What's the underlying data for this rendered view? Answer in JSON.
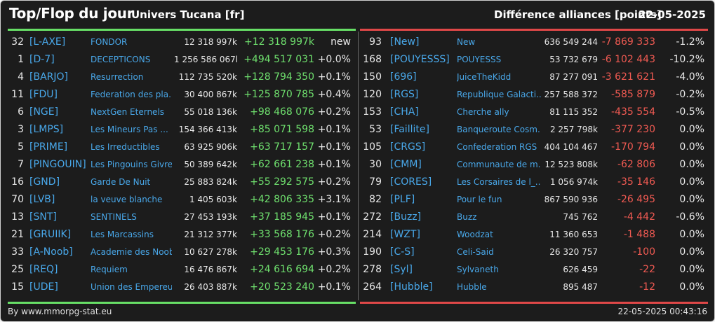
{
  "header": {
    "title": "Top/Flop du jour",
    "subtitle": "Univers Tucana [fr]",
    "metric": "Différence alliances [points]",
    "date": "22-05-2025"
  },
  "colors": {
    "background": "#1c1c1c",
    "top_bar": "#67df66",
    "flop_bar": "#e04848",
    "link": "#49a8ea",
    "positive": "#6fe06e",
    "negative": "#f05a52"
  },
  "top": [
    {
      "rank": "32",
      "tag": "[L-AXE]",
      "name": "FONDOR",
      "points": "12 318 997k",
      "diff": "+12 318 997k",
      "pct": "new"
    },
    {
      "rank": "1",
      "tag": "[D-7]",
      "name": "DECEPTICONS",
      "points": "1 256 586 067k",
      "diff": "+494 517 031",
      "pct": "+0.0%"
    },
    {
      "rank": "4",
      "tag": "[BARJO]",
      "name": "Resurrection",
      "points": "112 735 520k",
      "diff": "+128 794 350",
      "pct": "+0.1%"
    },
    {
      "rank": "11",
      "tag": "[FDU]",
      "name": "Federation des pla...",
      "points": "30 400 867k",
      "diff": "+125 870 785",
      "pct": "+0.4%"
    },
    {
      "rank": "6",
      "tag": "[NGE]",
      "name": "NextGen Eternels",
      "points": "55 018 136k",
      "diff": "+98 468 076",
      "pct": "+0.2%"
    },
    {
      "rank": "3",
      "tag": "[LMPS]",
      "name": "Les Mineurs Pas ...",
      "points": "154 366 413k",
      "diff": "+85 071 598",
      "pct": "+0.1%"
    },
    {
      "rank": "5",
      "tag": "[PRIME]",
      "name": "Les Irreductibles",
      "points": "63 925 906k",
      "diff": "+63 717 157",
      "pct": "+0.1%"
    },
    {
      "rank": "7",
      "tag": "[PINGOUIN]",
      "name": "Les Pingouins Givre...",
      "points": "50 389 642k",
      "diff": "+62 661 238",
      "pct": "+0.1%"
    },
    {
      "rank": "16",
      "tag": "[GND]",
      "name": "Garde De Nuit",
      "points": "25 883 824k",
      "diff": "+55 292 575",
      "pct": "+0.2%"
    },
    {
      "rank": "70",
      "tag": "[LVB]",
      "name": "la veuve blanche",
      "points": "1 405 603k",
      "diff": "+42 806 335",
      "pct": "+3.1%"
    },
    {
      "rank": "13",
      "tag": "[SNT]",
      "name": "SENTINELS",
      "points": "27 453 193k",
      "diff": "+37 185 945",
      "pct": "+0.1%"
    },
    {
      "rank": "21",
      "tag": "[GRUIIK]",
      "name": "Les Marcassins",
      "points": "21 312 377k",
      "diff": "+33 568 176",
      "pct": "+0.2%"
    },
    {
      "rank": "33",
      "tag": "[A-Noob]",
      "name": "Academie des Noob...",
      "points": "10 627 278k",
      "diff": "+29 453 176",
      "pct": "+0.3%"
    },
    {
      "rank": "25",
      "tag": "[REQ]",
      "name": "Requiem",
      "points": "16 476 867k",
      "diff": "+24 616 694",
      "pct": "+0.2%"
    },
    {
      "rank": "15",
      "tag": "[UDE]",
      "name": "Union des Empereur...",
      "points": "26 403 887k",
      "diff": "+20 523 240",
      "pct": "+0.1%"
    }
  ],
  "flop": [
    {
      "rank": "93",
      "tag": "[New]",
      "name": "New",
      "points": "636 549 244",
      "diff": "-7 869 333",
      "pct": "-1.2%"
    },
    {
      "rank": "168",
      "tag": "[POUYESSS]",
      "name": "POUYESSS",
      "points": "53 732 679",
      "diff": "-6 102 443",
      "pct": "-10.2%"
    },
    {
      "rank": "150",
      "tag": "[696]",
      "name": "JuiceTheKidd",
      "points": "87 277 091",
      "diff": "-3 621 621",
      "pct": "-4.0%"
    },
    {
      "rank": "120",
      "tag": "[RGS]",
      "name": "Republique Galacti...",
      "points": "257 588 372",
      "diff": "-585 879",
      "pct": "-0.2%"
    },
    {
      "rank": "153",
      "tag": "[CHA]",
      "name": "Cherche ally",
      "points": "81 115 352",
      "diff": "-435 554",
      "pct": "-0.5%"
    },
    {
      "rank": "53",
      "tag": "[Faillite]",
      "name": "Banqueroute Cosm...",
      "points": "2 257 798k",
      "diff": "-377 230",
      "pct": "0.0%"
    },
    {
      "rank": "105",
      "tag": "[CRGS]",
      "name": "Confederation RGS",
      "points": "404 104 467",
      "diff": "-170 794",
      "pct": "0.0%"
    },
    {
      "rank": "30",
      "tag": "[CMM]",
      "name": "Communaute de m...",
      "points": "12 523 808k",
      "diff": "-62 806",
      "pct": "0.0%"
    },
    {
      "rank": "79",
      "tag": "[CORES]",
      "name": "Les Corsaires de l_...",
      "points": "1 056 974k",
      "diff": "-35 146",
      "pct": "0.0%"
    },
    {
      "rank": "82",
      "tag": "[PLF]",
      "name": "Pour le fun",
      "points": "867 590 936",
      "diff": "-26 495",
      "pct": "0.0%"
    },
    {
      "rank": "272",
      "tag": "[Buzz]",
      "name": "Buzz",
      "points": "745 762",
      "diff": "-4 442",
      "pct": "-0.6%"
    },
    {
      "rank": "214",
      "tag": "[WZT]",
      "name": "Woodzat",
      "points": "11 360 653",
      "diff": "-1 488",
      "pct": "0.0%"
    },
    {
      "rank": "190",
      "tag": "[C-S]",
      "name": "Celi-Said",
      "points": "26 320 757",
      "diff": "-100",
      "pct": "0.0%"
    },
    {
      "rank": "278",
      "tag": "[Syl]",
      "name": "Sylvaneth",
      "points": "626 459",
      "diff": "-22",
      "pct": "0.0%"
    },
    {
      "rank": "264",
      "tag": "[Hubble]",
      "name": "Hubble",
      "points": "895 487",
      "diff": "-12",
      "pct": "0.0%"
    }
  ],
  "footer": {
    "credit": "By www.mmorpg-stat.eu",
    "timestamp": "22-05-2025 00:43:16"
  }
}
